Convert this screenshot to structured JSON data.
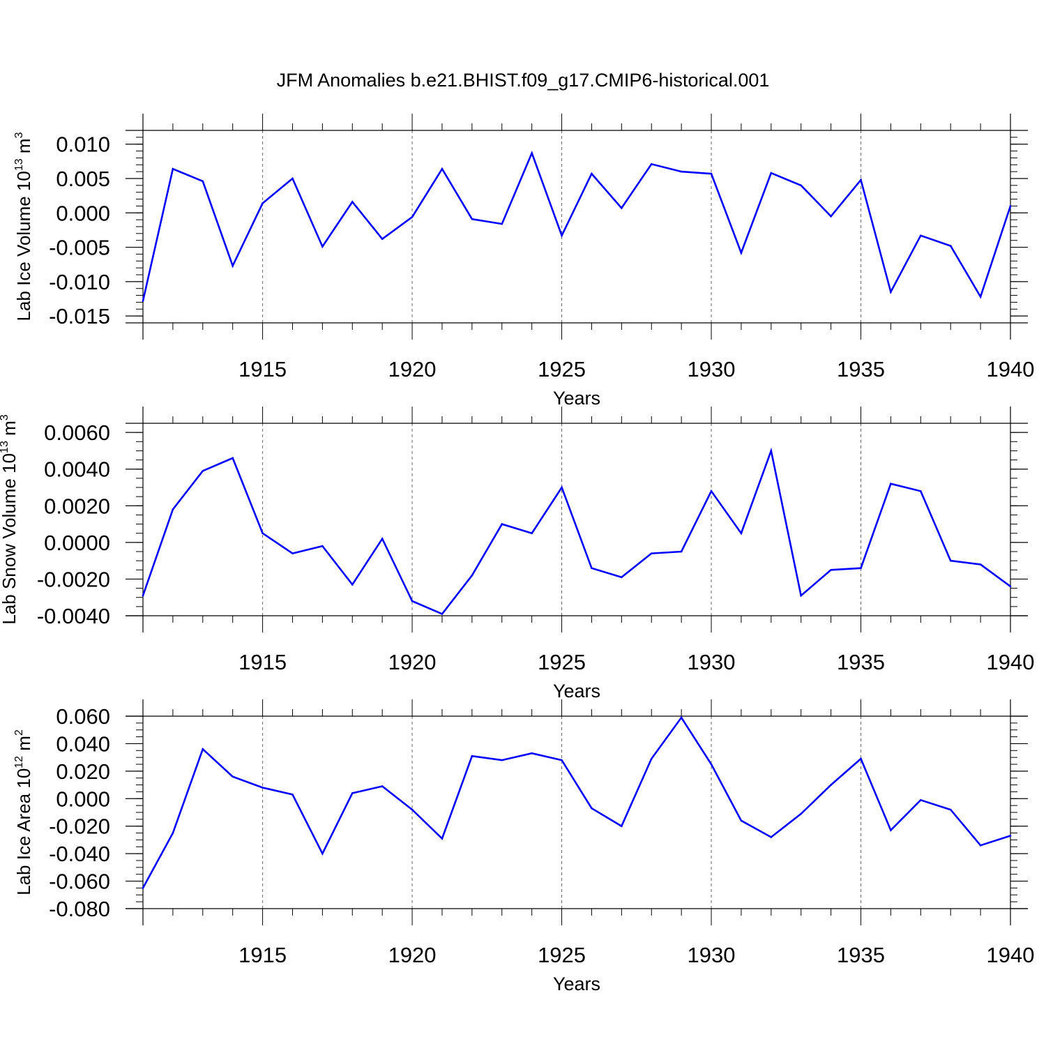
{
  "title": "JFM Anomalies b.e21.BHIST.f09_g17.CMIP6-historical.001",
  "colors": {
    "line": "#0000ff",
    "axis": "#000000",
    "grid": "#666666"
  },
  "chart_data": [
    {
      "type": "line",
      "ylabel_main": "Lab Ice Volume 10",
      "ylabel_exp": "13",
      "ylabel_unit": " m",
      "ylabel_unit_exp": "3",
      "xlabel": "Years",
      "xlim": [
        1911,
        1940
      ],
      "ylim": [
        -0.016,
        0.012
      ],
      "yticks": [
        -0.015,
        -0.01,
        -0.005,
        0.0,
        0.005,
        0.01
      ],
      "ytick_labels": [
        "-0.015",
        "-0.010",
        "-0.005",
        "0.000",
        "0.005",
        "0.010"
      ],
      "yminor_step": 0.001,
      "xticks": [
        1915,
        1920,
        1925,
        1930,
        1935,
        1940
      ],
      "xtick_labels": [
        "1915",
        "1920",
        "1925",
        "1930",
        "1935",
        "1940"
      ],
      "x": [
        1911,
        1912,
        1913,
        1914,
        1915,
        1916,
        1917,
        1918,
        1919,
        1920,
        1921,
        1922,
        1923,
        1924,
        1925,
        1926,
        1927,
        1928,
        1929,
        1930,
        1931,
        1932,
        1933,
        1934,
        1935,
        1936,
        1937,
        1938,
        1939,
        1940
      ],
      "values": [
        -0.0128,
        0.0064,
        0.0046,
        -0.0077,
        0.0014,
        0.005,
        -0.0049,
        0.0016,
        -0.0038,
        -0.0006,
        0.0064,
        -0.0009,
        -0.0016,
        0.0087,
        -0.0033,
        0.0057,
        0.0007,
        0.0071,
        0.006,
        0.0057,
        -0.0058,
        0.0058,
        0.004,
        -0.0005,
        0.0048,
        -0.0115,
        -0.0033,
        -0.0048,
        -0.0122,
        0.001
      ]
    },
    {
      "type": "line",
      "ylabel_main": "Lab Snow Volume 10",
      "ylabel_exp": "13",
      "ylabel_unit": " m",
      "ylabel_unit_exp": "3",
      "xlabel": "Years",
      "xlim": [
        1911,
        1940
      ],
      "ylim": [
        -0.004,
        0.0065
      ],
      "yticks": [
        -0.004,
        -0.002,
        0.0,
        0.002,
        0.004,
        0.006
      ],
      "ytick_labels": [
        "-0.0040",
        "-0.0020",
        "0.0000",
        "0.0020",
        "0.0040",
        "0.0060"
      ],
      "yminor_step": 0.0005,
      "xticks": [
        1915,
        1920,
        1925,
        1930,
        1935,
        1940
      ],
      "xtick_labels": [
        "1915",
        "1920",
        "1925",
        "1930",
        "1935",
        "1940"
      ],
      "x": [
        1911,
        1912,
        1913,
        1914,
        1915,
        1916,
        1917,
        1918,
        1919,
        1920,
        1921,
        1922,
        1923,
        1924,
        1925,
        1926,
        1927,
        1928,
        1929,
        1930,
        1931,
        1932,
        1933,
        1934,
        1935,
        1936,
        1937,
        1938,
        1939,
        1940
      ],
      "values": [
        -0.0029,
        0.0018,
        0.0039,
        0.0046,
        0.0005,
        -0.0006,
        -0.0002,
        -0.0023,
        0.0002,
        -0.0032,
        -0.0039,
        -0.0018,
        0.001,
        0.0005,
        0.003,
        -0.0014,
        -0.0019,
        -0.0006,
        -0.0005,
        0.0028,
        0.0005,
        0.005,
        -0.0029,
        -0.0015,
        -0.0014,
        0.0032,
        0.0028,
        -0.001,
        -0.0012,
        -0.0024
      ]
    },
    {
      "type": "line",
      "ylabel_main": "Lab Ice Area 10",
      "ylabel_exp": "12",
      "ylabel_unit": " m",
      "ylabel_unit_exp": "2",
      "xlabel": "Years",
      "xlim": [
        1911,
        1940
      ],
      "ylim": [
        -0.08,
        0.06
      ],
      "yticks": [
        -0.08,
        -0.06,
        -0.04,
        -0.02,
        0.0,
        0.02,
        0.04,
        0.06
      ],
      "ytick_labels": [
        "-0.080",
        "-0.060",
        "-0.040",
        "-0.020",
        "0.000",
        "0.020",
        "0.040",
        "0.060"
      ],
      "yminor_step": 0.005,
      "xticks": [
        1915,
        1920,
        1925,
        1930,
        1935,
        1940
      ],
      "xtick_labels": [
        "1915",
        "1920",
        "1925",
        "1930",
        "1935",
        "1940"
      ],
      "x": [
        1911,
        1912,
        1913,
        1914,
        1915,
        1916,
        1917,
        1918,
        1919,
        1920,
        1921,
        1922,
        1923,
        1924,
        1925,
        1926,
        1927,
        1928,
        1929,
        1930,
        1931,
        1932,
        1933,
        1934,
        1935,
        1936,
        1937,
        1938,
        1939,
        1940
      ],
      "values": [
        -0.065,
        -0.025,
        0.036,
        0.016,
        0.008,
        0.003,
        -0.04,
        0.004,
        0.009,
        -0.008,
        -0.029,
        0.031,
        0.028,
        0.033,
        0.028,
        -0.007,
        -0.02,
        0.029,
        0.059,
        0.025,
        -0.016,
        -0.028,
        -0.011,
        0.01,
        0.029,
        -0.023,
        -0.001,
        -0.008,
        -0.034,
        -0.027
      ]
    }
  ]
}
